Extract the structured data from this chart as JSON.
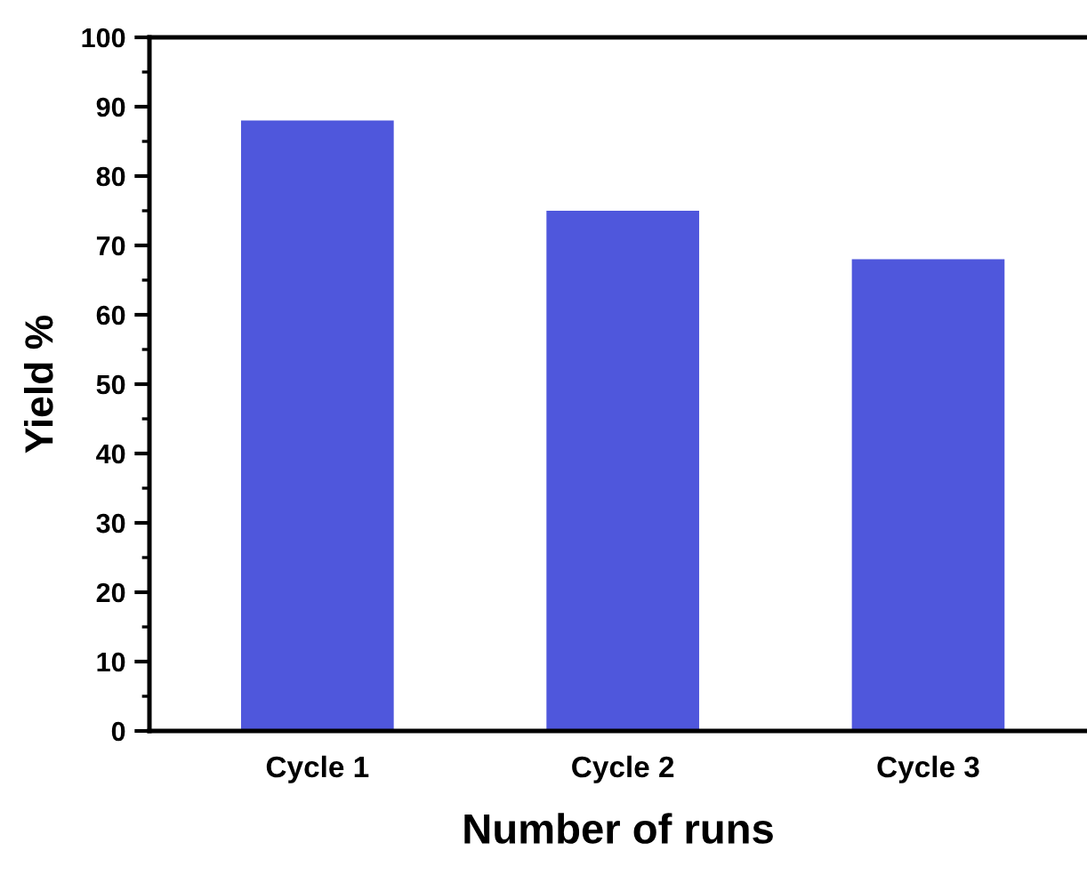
{
  "chart_data": {
    "type": "bar",
    "xlabel": "Number of runs",
    "ylabel": "Yield %",
    "categories": [
      "Cycle 1",
      "Cycle 2",
      "Cycle 3"
    ],
    "values": [
      88,
      75,
      68
    ],
    "color": "#4f57dc",
    "ylim": [
      0,
      100
    ],
    "yticks": [
      0,
      10,
      20,
      30,
      40,
      50,
      60,
      70,
      80,
      90,
      100
    ],
    "grid": false,
    "legend": false
  }
}
